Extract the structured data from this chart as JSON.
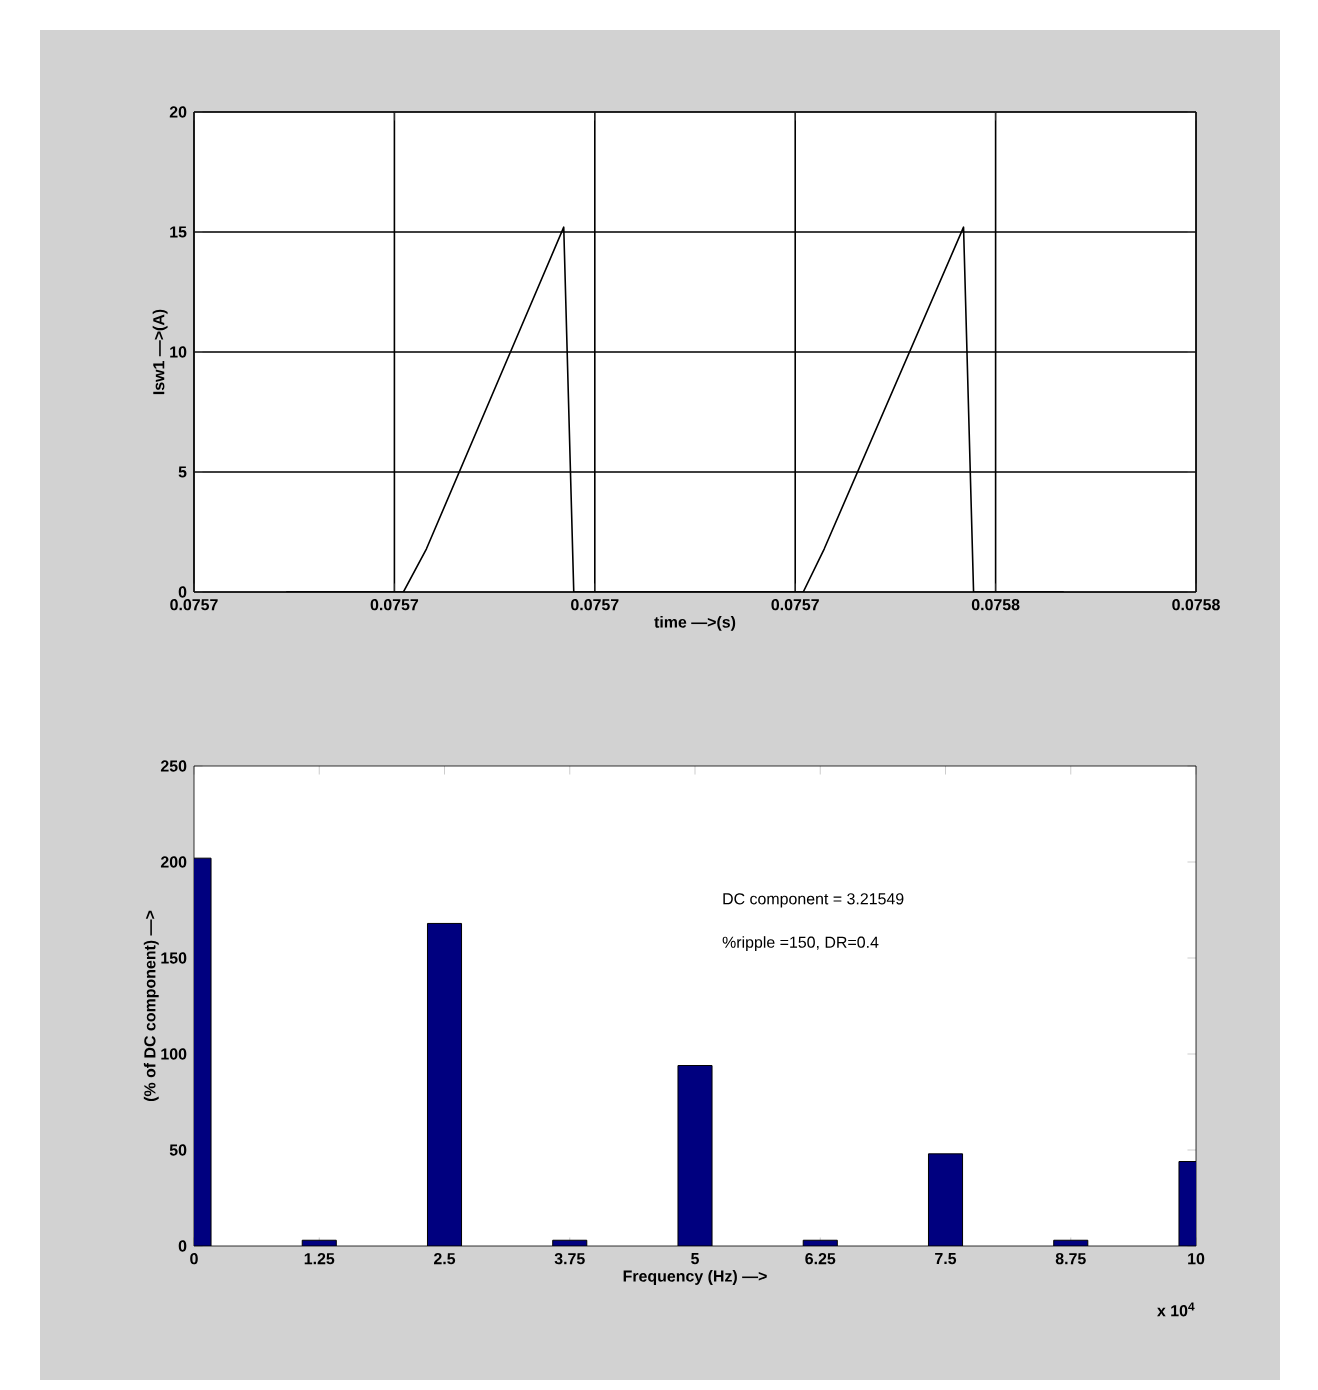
{
  "chart_data": [
    {
      "type": "line",
      "xlabel": "time —>(s)",
      "ylabel": "Isw1 —>(A)",
      "color": "#000000",
      "grid": true,
      "x": [
        0.0756792,
        0.0756909,
        0.0756932,
        0.0757069,
        0.0757079,
        0.07571,
        0.07573,
        0.0757308,
        0.0757329,
        0.0757468,
        0.0757478,
        0.07575,
        0.0757568
      ],
      "values": [
        0,
        0,
        1.8,
        15.2,
        0,
        0,
        0,
        0,
        1.8,
        15.2,
        0,
        0,
        0
      ],
      "xlim": [
        0.07567,
        0.07577
      ],
      "ylim": [
        0,
        20
      ],
      "xticks": [
        {
          "value": 0.07567,
          "label": "0.0757"
        },
        {
          "value": 0.07569,
          "label": "0.0757"
        },
        {
          "value": 0.07571,
          "label": "0.0757"
        },
        {
          "value": 0.07573,
          "label": "0.0757"
        },
        {
          "value": 0.07575,
          "label": "0.0758"
        },
        {
          "value": 0.07577,
          "label": "0.0758"
        }
      ],
      "yticks": [
        0,
        5,
        10,
        15,
        20
      ]
    },
    {
      "type": "bar",
      "xlabel": "Frequency (Hz) —>",
      "ylabel": "(% of DC component) —>",
      "color": "#00007f",
      "x": [
        0,
        1.25,
        2.5,
        3.75,
        5,
        6.25,
        7.5,
        8.75,
        10
      ],
      "values": [
        202,
        3,
        168,
        3,
        94,
        3,
        48,
        3,
        44
      ],
      "xlim": [
        0,
        10
      ],
      "ylim": [
        0,
        250
      ],
      "xticks": [
        0,
        1.25,
        2.5,
        3.75,
        5,
        6.25,
        7.5,
        8.75,
        10
      ],
      "yticks": [
        0,
        50,
        100,
        150,
        200,
        250
      ],
      "annotations": [
        "DC component = 3.21549",
        "%ripple =150,  DR=0.4",
        "x 10$^{4}$"
      ]
    }
  ]
}
